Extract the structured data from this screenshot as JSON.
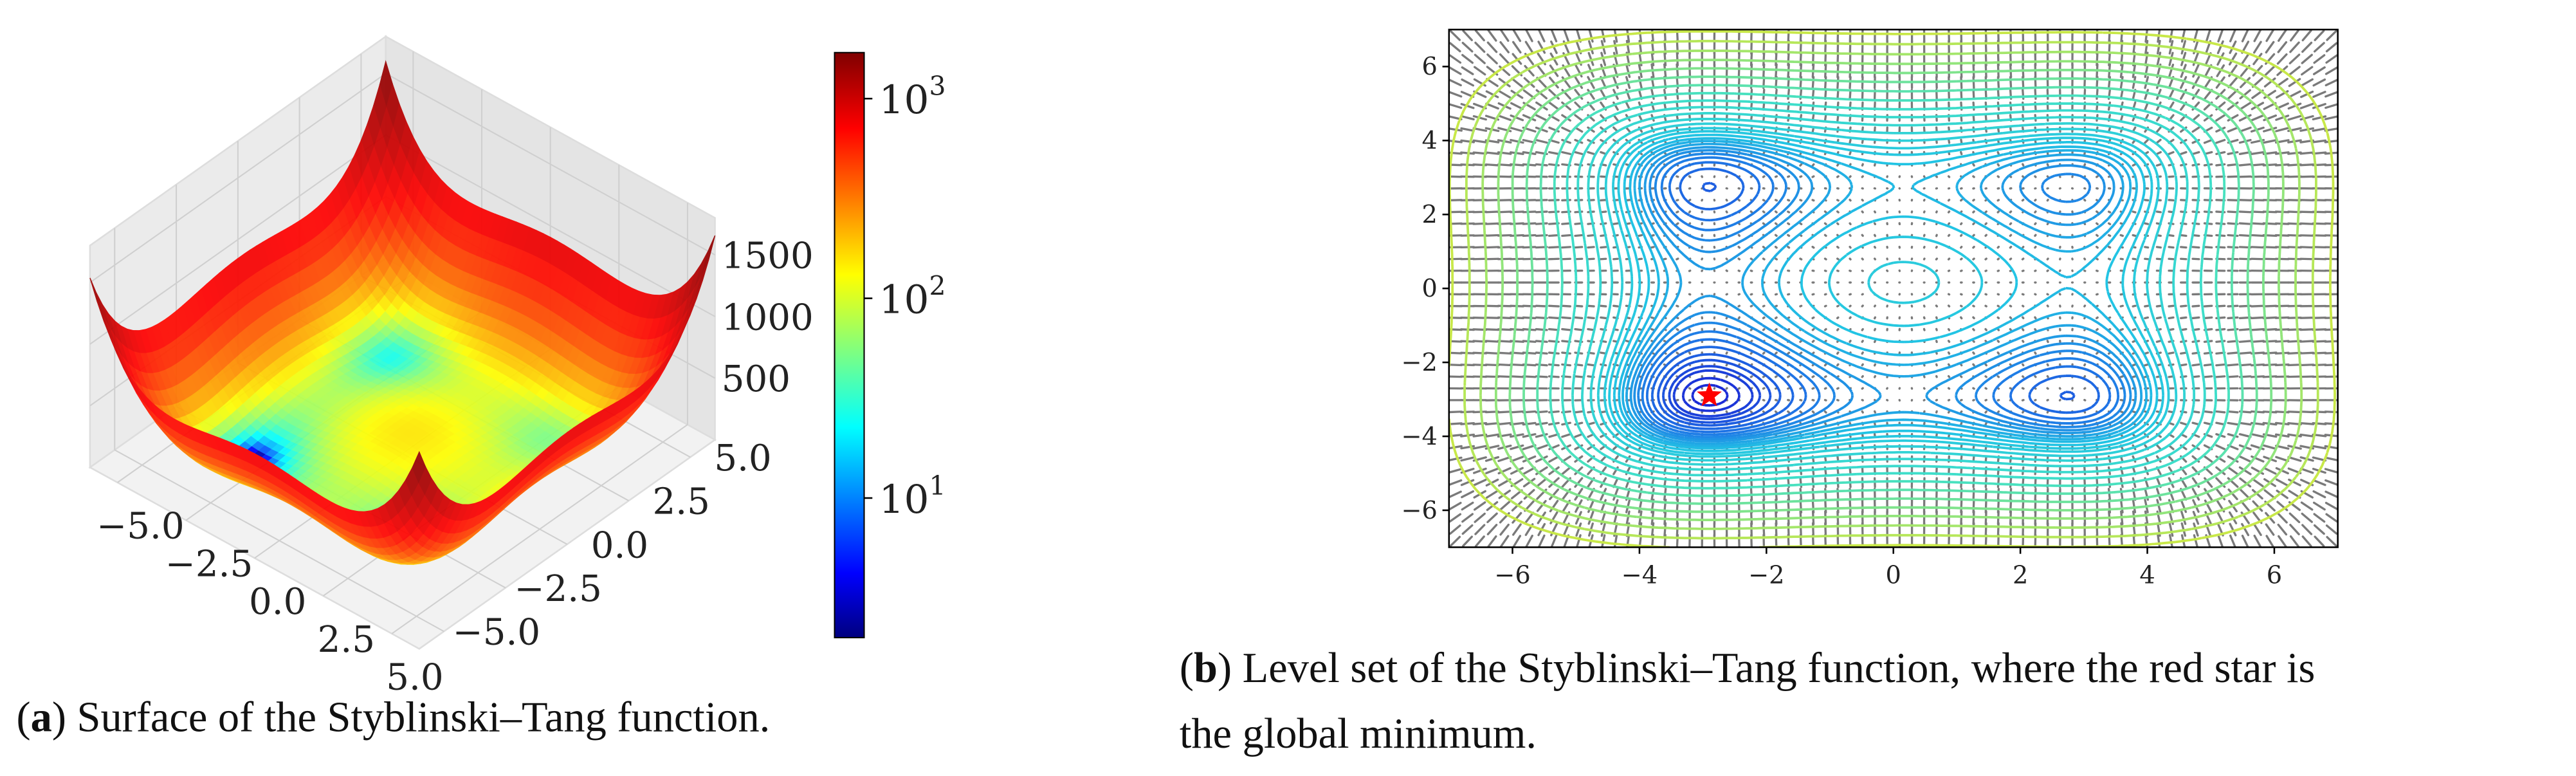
{
  "chart_data": [
    {
      "type": "surface",
      "caption": [
        "(",
        "a",
        ") Surface of the Styblinski–Tang function."
      ],
      "xlim": [
        -6,
        6
      ],
      "ylim": [
        -6,
        6
      ],
      "zlim": [
        0,
        1800
      ],
      "xticks": [
        {
          "value": -5,
          "label": "−5.0"
        },
        {
          "value": -2.5,
          "label": "−2.5"
        },
        {
          "value": 0,
          "label": "0.0"
        },
        {
          "value": 2.5,
          "label": "2.5"
        },
        {
          "value": 5,
          "label": "5.0"
        }
      ],
      "yticks": [
        {
          "value": -5,
          "label": "−5.0"
        },
        {
          "value": -2.5,
          "label": "−2.5"
        },
        {
          "value": 0,
          "label": "0.0"
        },
        {
          "value": 2.5,
          "label": "2.5"
        },
        {
          "value": 5,
          "label": "5.0"
        }
      ],
      "zticks": [
        500,
        1000,
        1500
      ],
      "colorbar": {
        "scale": "log",
        "colormap": "jet",
        "clim": [
          2,
          1700
        ],
        "ticks": [
          {
            "value": 10,
            "label": "10",
            "exponent": "1"
          },
          {
            "value": 100,
            "label": "10",
            "exponent": "2"
          },
          {
            "value": 1000,
            "label": "10",
            "exponent": "3"
          }
        ]
      }
    },
    {
      "type": "contour",
      "caption": [
        "(",
        "b",
        ") Level set of the Styblinski–Tang function, where the red star is",
        "the global minimum."
      ],
      "xlim": [
        -7,
        7
      ],
      "ylim": [
        -7,
        7
      ],
      "xticks": [
        {
          "value": -6,
          "label": "−6"
        },
        {
          "value": -4,
          "label": "−4"
        },
        {
          "value": -2,
          "label": "−2"
        },
        0,
        2,
        4,
        6
      ],
      "yticks": [
        {
          "value": -6,
          "label": "−6"
        },
        {
          "value": -4,
          "label": "−4"
        },
        {
          "value": -2,
          "label": "−2"
        },
        0,
        2,
        4,
        6
      ],
      "levels": [
        -77,
        -75,
        -72,
        -70,
        -67,
        -64,
        -60,
        -56,
        -52,
        -48,
        -44,
        -40,
        -35,
        -30,
        -25,
        -18,
        -10,
        -2,
        10,
        25,
        45,
        70,
        100,
        140,
        190,
        250,
        320,
        400,
        500,
        620,
        760
      ],
      "colors": [
        "#1a2ad6",
        "#1e78e6",
        "#22c4e4",
        "#40e0c8",
        "#c8e848"
      ],
      "quiver": true,
      "quiver_color": "#7a7a7a",
      "minimum": {
        "x": -2.9,
        "y": -2.9,
        "color": "#ff0000",
        "marker": "star"
      }
    }
  ]
}
